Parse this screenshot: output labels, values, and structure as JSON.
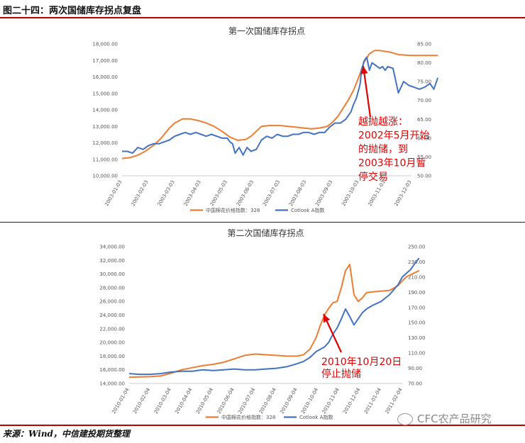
{
  "figure_title": "图二十四：两次国储库存拐点复盘",
  "source": "来源：Wind，中信建投期货整理",
  "brand": "CFC农产品研究",
  "colors": {
    "orange": "#ED7D31",
    "blue": "#4472C4",
    "annotation": "#E00000",
    "rule": "#C00000"
  },
  "chart_data": [
    {
      "type": "line",
      "title": "第一次国储库存拐点",
      "x_ticks": [
        "2003-01-03",
        "2003-02-03",
        "2003-03-03",
        "2003-04-03",
        "2003-05-03",
        "2003-06-03",
        "2003-07-03",
        "2003-08-03",
        "2003-09-03",
        "2003-10-03",
        "2003-11-03",
        "2003-12-03"
      ],
      "y_left": {
        "range": [
          10000,
          18000
        ],
        "ticks": [
          "10,000.00",
          "11,000.00",
          "12,000.00",
          "13,000.00",
          "14,000.00",
          "15,000.00",
          "16,000.00",
          "17,000.00",
          "18,000.00"
        ]
      },
      "y_right": {
        "range": [
          50,
          85
        ],
        "ticks": [
          "50.00",
          "55.00",
          "60.00",
          "65.00",
          "70.00",
          "75.00",
          "80.00",
          "85.00"
        ]
      },
      "series": [
        {
          "name": "中国棉花价格指数：328",
          "axis": "left",
          "color": "#ED7D31",
          "x": [
            0,
            0.3,
            0.6,
            0.9,
            1.2,
            1.5,
            1.8,
            2.0,
            2.3,
            2.6,
            2.9,
            3.2,
            3.5,
            3.8,
            4.1,
            4.4,
            4.7,
            4.9,
            5.1,
            5.3,
            5.6,
            5.8,
            6.0,
            6.3,
            6.6,
            6.9,
            7.2,
            7.5,
            7.8,
            8.0,
            8.2,
            8.4,
            8.6,
            8.8,
            9.0,
            9.2,
            9.4,
            9.6,
            9.8,
            10.0,
            10.2,
            10.5,
            11.0,
            11.5,
            12.0
          ],
          "y": [
            11050,
            11100,
            11250,
            11500,
            11850,
            12300,
            12900,
            13200,
            13450,
            13450,
            13350,
            13200,
            13000,
            12700,
            12350,
            12150,
            12200,
            12400,
            12700,
            13000,
            13050,
            13050,
            13050,
            13000,
            12950,
            12900,
            12850,
            12900,
            13000,
            13250,
            13600,
            14100,
            14600,
            15200,
            16000,
            16900,
            17400,
            17600,
            17600,
            17550,
            17500,
            17350,
            17300,
            17300,
            17300
          ]
        },
        {
          "name": "Cotlook A指数",
          "axis": "right",
          "color": "#4472C4",
          "x": [
            0,
            0.2,
            0.4,
            0.6,
            0.8,
            1.0,
            1.2,
            1.4,
            1.6,
            1.8,
            2.0,
            2.2,
            2.4,
            2.6,
            2.8,
            3.0,
            3.2,
            3.4,
            3.6,
            3.8,
            4.0,
            4.1,
            4.2,
            4.3,
            4.45,
            4.6,
            4.75,
            4.9,
            5.1,
            5.3,
            5.5,
            5.7,
            5.9,
            6.1,
            6.3,
            6.5,
            6.7,
            6.9,
            7.1,
            7.3,
            7.5,
            7.7,
            7.9,
            8.1,
            8.3,
            8.5,
            8.7,
            8.8,
            8.9,
            9.0,
            9.05,
            9.1,
            9.2,
            9.3,
            9.4,
            9.5,
            9.6,
            9.7,
            9.8,
            9.9,
            10.0,
            10.1,
            10.3,
            10.5,
            10.7,
            10.9,
            11.1,
            11.3,
            11.5,
            11.7,
            11.85,
            12.0
          ],
          "y": [
            56.5,
            56.5,
            56,
            57.5,
            57,
            58,
            58.5,
            58.5,
            59,
            59.5,
            60.5,
            61,
            61.5,
            61,
            61.5,
            61,
            60.5,
            61,
            60.5,
            60,
            60,
            59,
            58.5,
            56,
            57.5,
            55.5,
            57.5,
            56.5,
            57,
            59.5,
            60.5,
            60,
            61,
            60.5,
            60.5,
            61,
            61,
            61.5,
            61.5,
            61,
            61.5,
            61.5,
            63,
            64,
            64,
            65,
            67,
            69,
            70.5,
            73,
            74.5,
            78,
            80.5,
            81.5,
            78,
            80,
            79.5,
            79,
            78.5,
            79,
            78,
            79,
            78.5,
            72,
            75,
            74,
            73.5,
            73,
            73.5,
            74.5,
            73,
            76
          ]
        }
      ],
      "annotation": [
        "越抛越涨：",
        "2002年5月开始",
        "的抛储，到",
        "2003年10月暂",
        "停交易"
      ]
    },
    {
      "type": "line",
      "title": "第二次国储库存拐点",
      "x_ticks": [
        "2010-01-04",
        "2010-02-04",
        "2010-03-04",
        "2010-04-04",
        "2010-05-04",
        "2010-06-04",
        "2010-07-04",
        "2010-08-04",
        "2010-09-04",
        "2010-10-04",
        "2010-11-04",
        "2010-12-04",
        "2011-01-04",
        "2011-02-04"
      ],
      "y_left": {
        "range": [
          14000,
          34000
        ],
        "ticks": [
          "14,000.00",
          "16,000.00",
          "18,000.00",
          "20,000.00",
          "22,000.00",
          "24,000.00",
          "26,000.00",
          "28,000.00",
          "30,000.00",
          "32,000.00",
          "34,000.00"
        ]
      },
      "y_right": {
        "range": [
          70,
          250
        ],
        "ticks": [
          "70.00",
          "90.00",
          "110.00",
          "130.00",
          "150.00",
          "170.00",
          "190.00",
          "210.00",
          "230.00",
          "250.00"
        ]
      },
      "series": [
        {
          "name": "中国棉花价格指数：328",
          "axis": "left",
          "color": "#ED7D31",
          "x": [
            0,
            0.5,
            1.0,
            1.5,
            2.0,
            2.5,
            3.0,
            3.5,
            4.0,
            4.5,
            5.0,
            5.5,
            6.0,
            6.5,
            7.0,
            7.5,
            8.0,
            8.3,
            8.6,
            8.9,
            9.1,
            9.3,
            9.5,
            9.7,
            9.9,
            10.1,
            10.3,
            10.5,
            10.7,
            10.9,
            11.1,
            11.3,
            11.6,
            12.0,
            12.4,
            12.8,
            13.0,
            13.2,
            13.4,
            13.6,
            13.8
          ],
          "y": [
            14900,
            14950,
            15000,
            15100,
            15500,
            16000,
            16300,
            16600,
            16800,
            17100,
            17600,
            18100,
            18300,
            18200,
            18100,
            18000,
            18000,
            18200,
            19000,
            20700,
            22500,
            24000,
            25000,
            25800,
            26000,
            28000,
            30500,
            31400,
            27000,
            26000,
            26500,
            27300,
            27400,
            27500,
            27600,
            28300,
            29000,
            29600,
            29900,
            30200,
            30500
          ]
        },
        {
          "name": "Cotlook A指数",
          "axis": "right",
          "color": "#4472C4",
          "x": [
            0,
            0.5,
            1.0,
            1.5,
            2.0,
            2.5,
            3.0,
            3.5,
            4.0,
            4.5,
            5.0,
            5.5,
            6.0,
            6.5,
            7.0,
            7.5,
            8.0,
            8.3,
            8.6,
            8.9,
            9.1,
            9.3,
            9.5,
            9.7,
            9.9,
            10.1,
            10.3,
            10.5,
            10.7,
            10.9,
            11.1,
            11.3,
            11.6,
            12.0,
            12.4,
            12.8,
            13.0,
            13.2,
            13.4,
            13.6,
            13.8
          ],
          "y": [
            83,
            82,
            82,
            83,
            85,
            86,
            86,
            88,
            87,
            88,
            89,
            88,
            88,
            89,
            90,
            92,
            96,
            99,
            104,
            112,
            115,
            118,
            124,
            135,
            143,
            155,
            168,
            158,
            147,
            155,
            163,
            168,
            173,
            178,
            187,
            200,
            210,
            215,
            220,
            228,
            235
          ]
        }
      ],
      "annotation": [
        "2010年10月20日",
        "停止抛储"
      ]
    }
  ]
}
